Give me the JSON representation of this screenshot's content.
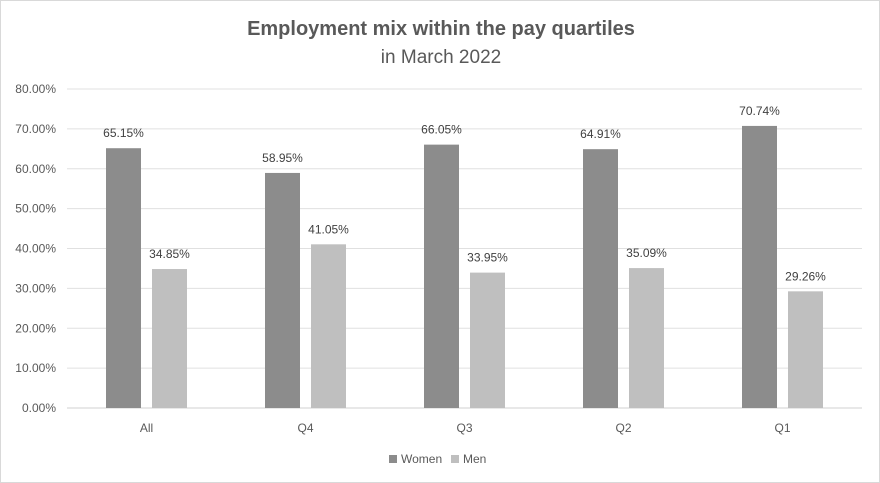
{
  "chart_data": {
    "type": "bar",
    "title": "Employment mix within the pay quartiles",
    "subtitle": "in March 2022",
    "categories": [
      "All",
      "Q4",
      "Q3",
      "Q2",
      "Q1"
    ],
    "series": [
      {
        "name": "Women",
        "color": "#8c8c8c",
        "values": [
          65.15,
          58.95,
          66.05,
          64.91,
          70.74
        ],
        "labels": [
          "65.15%",
          "58.95%",
          "66.05%",
          "64.91%",
          "70.74%"
        ]
      },
      {
        "name": "Men",
        "color": "#bfbfbf",
        "values": [
          34.85,
          41.05,
          33.95,
          35.09,
          29.26
        ],
        "labels": [
          "34.85%",
          "41.05%",
          "33.95%",
          "35.09%",
          "29.26%"
        ]
      }
    ],
    "ylim": [
      0,
      80
    ],
    "yticks": [
      0,
      10,
      20,
      30,
      40,
      50,
      60,
      70,
      80
    ],
    "ytick_labels": [
      "0.00%",
      "10.00%",
      "20.00%",
      "30.00%",
      "40.00%",
      "50.00%",
      "60.00%",
      "70.00%",
      "80.00%"
    ],
    "grid": true,
    "legend": "bottom",
    "gridline_color": "#e0e0e0",
    "axis_color": "#d0d0d0"
  }
}
